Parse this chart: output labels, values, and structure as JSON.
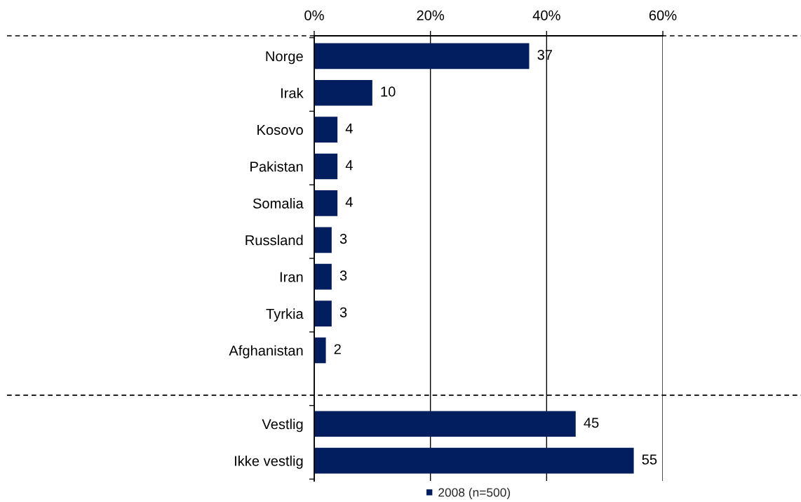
{
  "chart_data": [
    {
      "type": "bar",
      "orientation": "horizontal",
      "categories": [
        "Norge",
        "Irak",
        "Kosovo",
        "Pakistan",
        "Somalia",
        "Russland",
        "Iran",
        "Tyrkia",
        "Afghanistan"
      ],
      "series": [
        {
          "color": "#021e5f",
          "values": [
            37,
            10,
            4,
            4,
            4,
            3,
            3,
            3,
            2
          ]
        }
      ],
      "xlim": [
        0,
        60
      ],
      "xticks": [
        {
          "value": 0,
          "label": "0%"
        },
        {
          "value": 20,
          "label": "20%"
        },
        {
          "value": 40,
          "label": "40%"
        },
        {
          "value": 60,
          "label": "60%"
        }
      ],
      "grid": "x",
      "data_labels": true
    },
    {
      "type": "bar",
      "orientation": "horizontal",
      "categories": [
        "Vestlig",
        "Ikke vestlig"
      ],
      "series": [
        {
          "name": "2008 (n=500)",
          "color": "#021e5f",
          "values": [
            45,
            55
          ]
        }
      ],
      "xlim": [
        0,
        60
      ],
      "xticks": [
        {
          "value": 0,
          "label": null
        },
        {
          "value": 20,
          "label": null
        },
        {
          "value": 40,
          "label": null
        },
        {
          "value": 60,
          "label": null
        }
      ],
      "grid": "x",
      "data_labels": true,
      "tick_labels": "y",
      "legend": "bottom"
    }
  ]
}
